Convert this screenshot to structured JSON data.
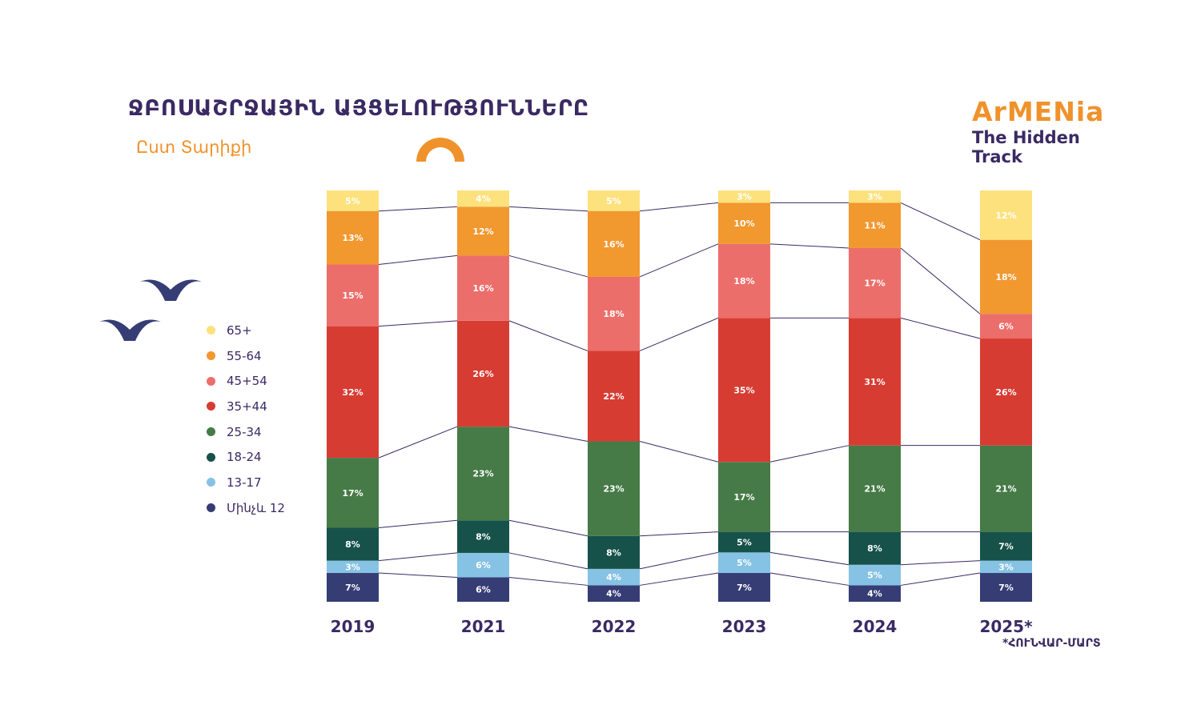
{
  "header": {
    "title": "ՋԲՈՍԱՇՐՋԱՅԻՆ ԱՅՑԵԼՈՒԹՅՈՒՆՆԵՐԸ",
    "subtitle": "Ըստ Տարիքի"
  },
  "brand": {
    "name": "ArMENia",
    "tagline_1": "The Hidden",
    "tagline_2": "Track"
  },
  "footnote": "*ՀՈՒՆՎԱՐ-ՄԱՐՏ",
  "colors": {
    "text_dark": "#3a2a63",
    "accent_orange": "#f0922b",
    "connector": "#3a2a63"
  },
  "icons": [
    "bird-icon",
    "arch-decoration"
  ],
  "chart_data": {
    "type": "bar",
    "stacked": true,
    "categories": [
      "2019",
      "2021",
      "2022",
      "2023",
      "2024",
      "2025*"
    ],
    "ylim": [
      0,
      100
    ],
    "unit": "%",
    "legend_position": "left",
    "grid": false,
    "series": [
      {
        "name": "Մինչև 12",
        "color": "#363d75",
        "values": [
          7,
          6,
          4,
          7,
          4,
          7
        ]
      },
      {
        "name": "13-17",
        "color": "#86c2e3",
        "values": [
          3,
          6,
          4,
          5,
          5,
          3
        ]
      },
      {
        "name": "18-24",
        "color": "#16524a",
        "values": [
          8,
          8,
          8,
          5,
          8,
          7
        ]
      },
      {
        "name": "25-34",
        "color": "#467b47",
        "values": [
          17,
          23,
          23,
          17,
          21,
          21
        ]
      },
      {
        "name": "35+44",
        "color": "#d73c33",
        "values": [
          32,
          26,
          22,
          35,
          31,
          26
        ]
      },
      {
        "name": "45+54",
        "color": "#ec6e6b",
        "values": [
          15,
          16,
          18,
          18,
          17,
          6
        ]
      },
      {
        "name": "55-64",
        "color": "#f1982f",
        "values": [
          13,
          12,
          16,
          10,
          11,
          18
        ]
      },
      {
        "name": "65+",
        "color": "#fde17c",
        "values": [
          5,
          4,
          5,
          3,
          3,
          12
        ]
      }
    ],
    "legend": [
      "65+",
      "55-64",
      "45+54",
      "35+44",
      "25-34",
      "18-24",
      "13-17",
      "Մինչև 12"
    ]
  }
}
